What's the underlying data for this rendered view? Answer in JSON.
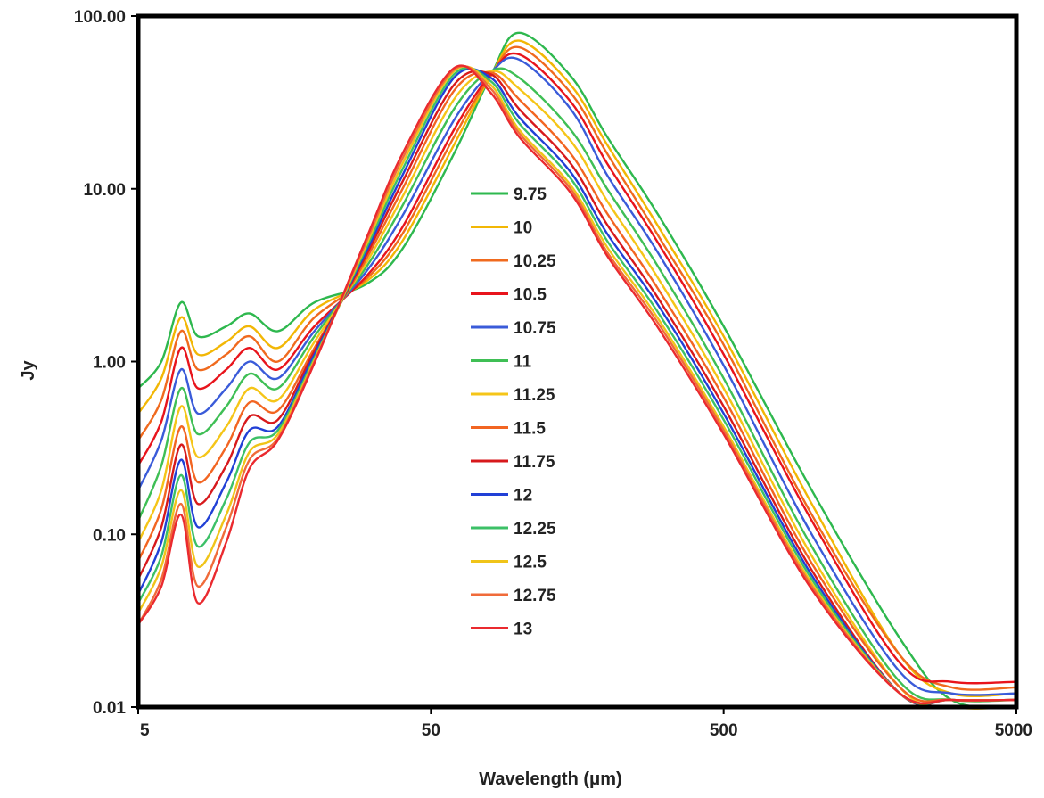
{
  "chart_data": {
    "type": "line",
    "title": "",
    "xlabel": "Wavelength (μm)",
    "ylabel": "Jy",
    "x_scale": "log",
    "y_scale": "log",
    "xlim": [
      5,
      5000
    ],
    "ylim": [
      0.01,
      100
    ],
    "x_ticks": [
      5,
      50,
      500,
      5000
    ],
    "x_tick_labels": [
      "5",
      "50",
      "500",
      "5000"
    ],
    "y_ticks": [
      0.01,
      0.1,
      1,
      10,
      100
    ],
    "y_tick_labels": [
      "0.01",
      "0.10",
      "1.00",
      "10.00",
      "100.00"
    ],
    "grid": false,
    "legend_position": "center",
    "x": [
      5,
      6,
      7,
      8,
      10,
      12,
      15,
      20,
      30,
      40,
      60,
      80,
      100,
      150,
      200,
      300,
      500,
      1000,
      2000,
      3000,
      5000
    ],
    "series": [
      {
        "name": "9.75",
        "color": "#2eb84e",
        "values": [
          0.7,
          1.0,
          2.2,
          1.4,
          1.6,
          1.9,
          1.5,
          2.2,
          2.8,
          4.5,
          16,
          45,
          80,
          45,
          20,
          7,
          1.6,
          0.18,
          0.025,
          0.011,
          0.01
        ]
      },
      {
        "name": "10",
        "color": "#f2b705",
        "values": [
          0.5,
          0.8,
          1.8,
          1.1,
          1.3,
          1.6,
          1.2,
          2.0,
          2.9,
          5,
          18,
          45,
          72,
          40,
          18,
          6,
          1.4,
          0.15,
          0.02,
          0.012,
          0.012
        ]
      },
      {
        "name": "10.25",
        "color": "#f06a1e",
        "values": [
          0.35,
          0.6,
          1.5,
          0.9,
          1.1,
          1.4,
          1.0,
          1.8,
          3.0,
          5.5,
          20,
          45,
          66,
          36,
          16,
          5.3,
          1.25,
          0.13,
          0.02,
          0.013,
          0.013
        ]
      },
      {
        "name": "10.5",
        "color": "#e8141c",
        "values": [
          0.25,
          0.45,
          1.2,
          0.7,
          0.9,
          1.2,
          0.9,
          1.6,
          3.1,
          6,
          22,
          46,
          60,
          32,
          14,
          4.8,
          1.1,
          0.12,
          0.018,
          0.014,
          0.014
        ]
      },
      {
        "name": "10.75",
        "color": "#3a5bd9",
        "values": [
          0.18,
          0.35,
          0.9,
          0.5,
          0.7,
          1.0,
          0.8,
          1.5,
          3.3,
          7,
          25,
          47,
          56,
          29,
          12,
          4.2,
          0.95,
          0.1,
          0.016,
          0.012,
          0.012
        ]
      },
      {
        "name": "11",
        "color": "#3fbf55",
        "values": [
          0.12,
          0.25,
          0.7,
          0.38,
          0.55,
          0.85,
          0.7,
          1.4,
          3.5,
          8,
          29,
          48,
          44,
          22,
          10,
          3.5,
          0.8,
          0.085,
          0.014,
          0.011,
          0.011
        ]
      },
      {
        "name": "11.25",
        "color": "#f5c518",
        "values": [
          0.09,
          0.18,
          0.55,
          0.28,
          0.42,
          0.7,
          0.6,
          1.3,
          3.7,
          9,
          33,
          48,
          38,
          19,
          8.5,
          3.0,
          0.7,
          0.075,
          0.013,
          0.01,
          0.01
        ]
      },
      {
        "name": "11.5",
        "color": "#f26522",
        "values": [
          0.07,
          0.14,
          0.42,
          0.2,
          0.32,
          0.58,
          0.52,
          1.2,
          3.9,
          10,
          37,
          47,
          33,
          16,
          7.2,
          2.6,
          0.62,
          0.068,
          0.013,
          0.011,
          0.011
        ]
      },
      {
        "name": "11.75",
        "color": "#d7191c",
        "values": [
          0.055,
          0.11,
          0.33,
          0.15,
          0.25,
          0.48,
          0.46,
          1.15,
          4.1,
          11,
          40,
          46,
          29,
          14,
          6.2,
          2.3,
          0.55,
          0.062,
          0.012,
          0.011,
          0.011
        ]
      },
      {
        "name": "12",
        "color": "#2140d6",
        "values": [
          0.045,
          0.09,
          0.27,
          0.11,
          0.2,
          0.4,
          0.42,
          1.1,
          4.3,
          12,
          44,
          44,
          26,
          12.5,
          5.5,
          2.1,
          0.5,
          0.058,
          0.012,
          0.011,
          0.011
        ]
      },
      {
        "name": "12.25",
        "color": "#3cc067",
        "values": [
          0.04,
          0.075,
          0.22,
          0.085,
          0.16,
          0.34,
          0.4,
          1.05,
          4.5,
          13,
          46,
          42,
          24,
          11.5,
          5.0,
          1.9,
          0.46,
          0.055,
          0.012,
          0.011,
          0.011
        ]
      },
      {
        "name": "12.5",
        "color": "#f0c419",
        "values": [
          0.035,
          0.065,
          0.18,
          0.065,
          0.13,
          0.3,
          0.38,
          1.02,
          4.7,
          14,
          48,
          40,
          22,
          10.5,
          4.6,
          1.75,
          0.42,
          0.052,
          0.012,
          0.011,
          0.011
        ]
      },
      {
        "name": "12.75",
        "color": "#f06b3a",
        "values": [
          0.03,
          0.055,
          0.15,
          0.05,
          0.11,
          0.27,
          0.36,
          1.0,
          4.9,
          15,
          49,
          38,
          21,
          10,
          4.3,
          1.65,
          0.4,
          0.05,
          0.012,
          0.011,
          0.011
        ]
      },
      {
        "name": "13",
        "color": "#ea2a2f",
        "values": [
          0.03,
          0.05,
          0.13,
          0.04,
          0.09,
          0.24,
          0.35,
          0.98,
          5.1,
          16,
          50,
          36,
          20,
          9.5,
          4.1,
          1.55,
          0.38,
          0.048,
          0.012,
          0.011,
          0.011
        ]
      }
    ]
  }
}
